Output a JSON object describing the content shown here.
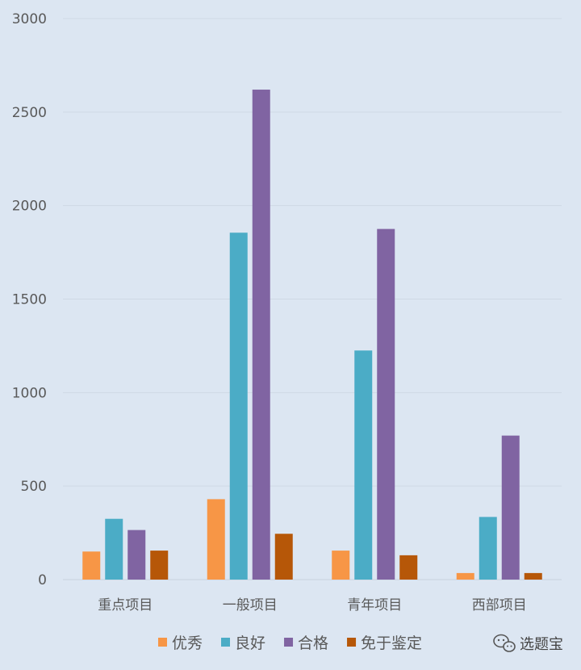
{
  "chart_data": {
    "type": "bar",
    "categories": [
      "重点项目",
      "一般项目",
      "青年项目",
      "西部项目"
    ],
    "series": [
      {
        "name": "优秀",
        "color": "#f79646",
        "values": [
          150,
          430,
          155,
          35
        ]
      },
      {
        "name": "良好",
        "color": "#4bacc6",
        "values": [
          325,
          1855,
          1225,
          335
        ]
      },
      {
        "name": "合格",
        "color": "#8064a2",
        "values": [
          265,
          2620,
          1875,
          770
        ]
      },
      {
        "name": "免于鉴定",
        "color": "#b65708",
        "values": [
          155,
          245,
          130,
          35
        ]
      }
    ],
    "ylim": [
      0,
      3000
    ],
    "yticks": [
      0,
      500,
      1000,
      1500,
      2000,
      2500,
      3000
    ],
    "grid": true,
    "legend_position": "bottom"
  },
  "watermark": {
    "icon": "wechat-icon",
    "text": "选题宝"
  }
}
